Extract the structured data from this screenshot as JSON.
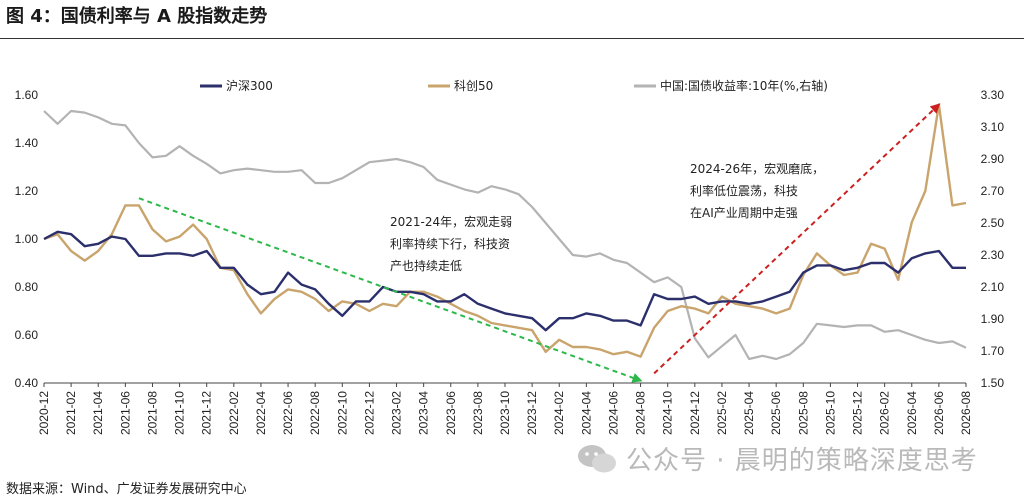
{
  "header": {
    "title": "图 4：国债利率与 A 股指数走势"
  },
  "footer": {
    "source": "数据来源：Wind、广发证券发展研究中心"
  },
  "watermark": {
    "text": "公众号 · 晨明的策略深度思考",
    "icon": "wechat-icon"
  },
  "chart_data": {
    "type": "line",
    "x": [
      "2020-12",
      "2021-01",
      "2021-02",
      "2021-03",
      "2021-04",
      "2021-05",
      "2021-06",
      "2021-07",
      "2021-08",
      "2021-09",
      "2021-10",
      "2021-11",
      "2021-12",
      "2022-01",
      "2022-02",
      "2022-03",
      "2022-04",
      "2022-05",
      "2022-06",
      "2022-07",
      "2022-08",
      "2022-09",
      "2022-10",
      "2022-11",
      "2022-12",
      "2023-01",
      "2023-02",
      "2023-03",
      "2023-04",
      "2023-05",
      "2023-06",
      "2023-07",
      "2023-08",
      "2023-09",
      "2023-10",
      "2023-11",
      "2023-12",
      "2024-01",
      "2024-02",
      "2024-03",
      "2024-04",
      "2024-05",
      "2024-06",
      "2024-07",
      "2024-08",
      "2024-09",
      "2024-10",
      "2024-11",
      "2024-12",
      "2025-01",
      "2025-02",
      "2025-03",
      "2025-04",
      "2025-05",
      "2025-06",
      "2025-07",
      "2025-08",
      "2025-09",
      "2025-10",
      "2025-11",
      "2025-12",
      "2026-01",
      "2026-02",
      "2026-03",
      "2026-04",
      "2026-05",
      "2026-06",
      "2026-07",
      "2026-08"
    ],
    "x_tick_labels": [
      "2020-12",
      "2021-02",
      "2021-04",
      "2021-06",
      "2021-08",
      "2021-10",
      "2021-12",
      "2022-02",
      "2022-04",
      "2022-06",
      "2022-08",
      "2022-10",
      "2022-12",
      "2023-02",
      "2023-04",
      "2023-06",
      "2023-08",
      "2023-10",
      "2023-12",
      "2024-02",
      "2024-04",
      "2024-06",
      "2024-08",
      "2024-10",
      "2024-12",
      "2025-02",
      "2025-04",
      "2025-06",
      "2025-08",
      "2025-10",
      "2025-12",
      "2026-02",
      "2026-04",
      "2026-06",
      "2026-08"
    ],
    "left_axis": {
      "ylim": [
        0.4,
        1.6
      ],
      "ticks": [
        "0.40",
        "0.60",
        "0.80",
        "1.00",
        "1.20",
        "1.40",
        "1.60"
      ]
    },
    "right_axis": {
      "ylim": [
        1.5,
        3.3
      ],
      "ticks": [
        "1.50",
        "1.70",
        "1.90",
        "2.10",
        "2.30",
        "2.50",
        "2.70",
        "2.90",
        "3.10",
        "3.30"
      ]
    },
    "grid": false,
    "legend_position": "top",
    "series": [
      {
        "name": "沪深300",
        "axis": "left",
        "color": "#2b2f6b",
        "values": [
          1.0,
          1.03,
          1.02,
          0.97,
          0.98,
          1.01,
          1.0,
          0.93,
          0.93,
          0.94,
          0.94,
          0.93,
          0.95,
          0.88,
          0.88,
          0.81,
          0.77,
          0.78,
          0.86,
          0.81,
          0.79,
          0.73,
          0.68,
          0.74,
          0.74,
          0.8,
          0.78,
          0.78,
          0.77,
          0.74,
          0.74,
          0.77,
          0.73,
          0.71,
          0.69,
          0.68,
          0.67,
          0.62,
          0.67,
          0.67,
          0.69,
          0.68,
          0.66,
          0.66,
          0.64,
          0.77,
          0.75,
          0.75,
          0.76,
          0.73,
          0.74,
          0.74,
          0.73,
          0.74,
          0.76,
          0.78,
          0.86,
          0.89,
          0.89,
          0.87,
          0.88,
          0.9,
          0.9,
          0.86,
          0.92,
          0.94,
          0.95,
          0.88,
          0.88
        ]
      },
      {
        "name": "科创50",
        "axis": "left",
        "color": "#c9a46c",
        "values": [
          1.0,
          1.02,
          0.95,
          0.91,
          0.95,
          1.02,
          1.14,
          1.14,
          1.04,
          0.99,
          1.01,
          1.06,
          1.0,
          0.88,
          0.87,
          0.77,
          0.69,
          0.75,
          0.79,
          0.78,
          0.75,
          0.7,
          0.74,
          0.73,
          0.7,
          0.73,
          0.72,
          0.78,
          0.78,
          0.76,
          0.73,
          0.7,
          0.68,
          0.65,
          0.64,
          0.63,
          0.62,
          0.53,
          0.58,
          0.55,
          0.55,
          0.54,
          0.52,
          0.53,
          0.51,
          0.63,
          0.7,
          0.72,
          0.71,
          0.69,
          0.76,
          0.73,
          0.72,
          0.71,
          0.69,
          0.71,
          0.85,
          0.94,
          0.89,
          0.85,
          0.86,
          0.98,
          0.96,
          0.83,
          1.07,
          1.2,
          1.56,
          1.14,
          1.15
        ]
      },
      {
        "name": "中国:国债收益率:10年(%,右轴)",
        "axis": "right",
        "color": "#b3b3b3",
        "values": [
          3.2,
          3.12,
          3.2,
          3.19,
          3.16,
          3.12,
          3.11,
          3.0,
          2.91,
          2.92,
          2.98,
          2.92,
          2.87,
          2.81,
          2.83,
          2.84,
          2.83,
          2.82,
          2.82,
          2.83,
          2.75,
          2.75,
          2.78,
          2.83,
          2.88,
          2.89,
          2.9,
          2.88,
          2.85,
          2.77,
          2.74,
          2.71,
          2.69,
          2.73,
          2.71,
          2.68,
          2.6,
          2.5,
          2.4,
          2.3,
          2.29,
          2.31,
          2.27,
          2.25,
          2.19,
          2.13,
          2.16,
          2.1,
          1.78,
          1.66,
          1.73,
          1.8,
          1.65,
          1.67,
          1.65,
          1.68,
          1.75,
          1.87,
          1.86,
          1.85,
          1.86,
          1.86,
          1.82,
          1.83,
          1.8,
          1.77,
          1.75,
          1.76,
          1.72
        ]
      }
    ],
    "annotations": [
      {
        "lines": [
          "2021-24年，宏观走弱",
          "利率持续下行，科技资",
          "产也持续走低"
        ],
        "arrow_color": "#2db84a"
      },
      {
        "lines": [
          "2024-26年，宏观磨底，",
          "利率低位震荡，科技",
          "在AI产业周期中走强"
        ],
        "arrow_color": "#cc2020"
      }
    ]
  }
}
